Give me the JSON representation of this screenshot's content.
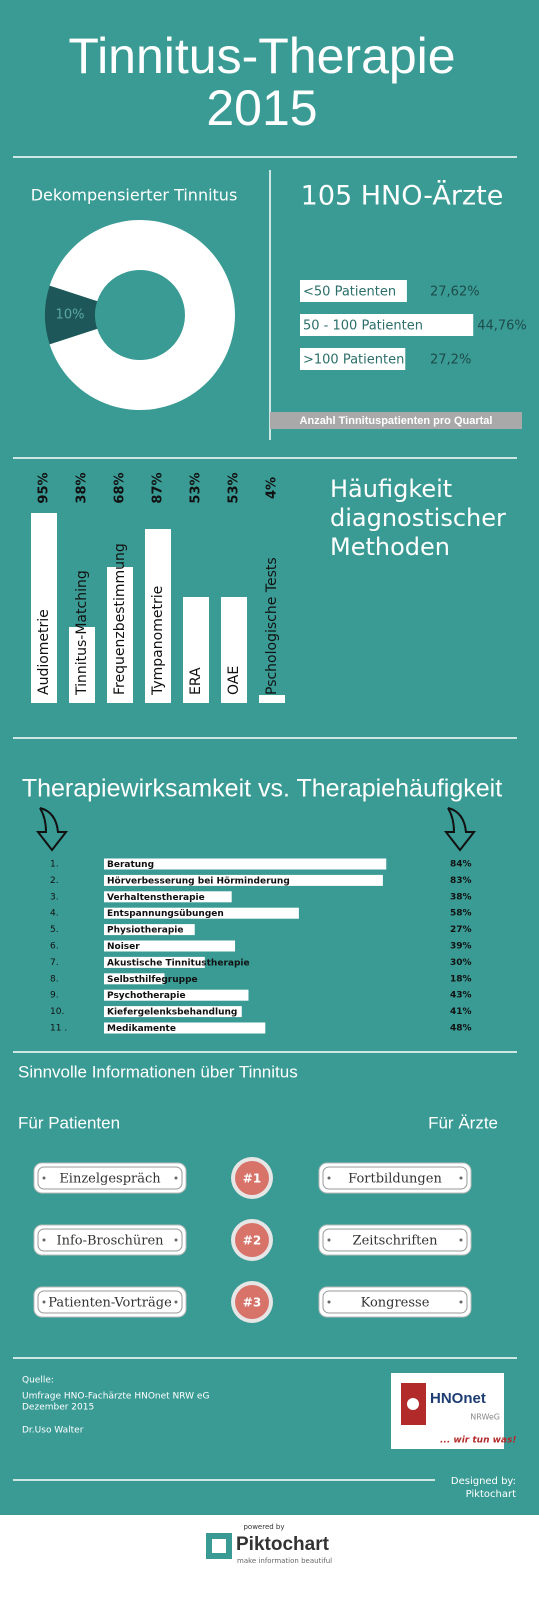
{
  "header": {
    "title_lines": [
      "Tinnitus-Therapie",
      "2015"
    ]
  },
  "chart_data": [
    {
      "type": "pie",
      "donut": true,
      "title": "Dekompensierter Tinnitus",
      "categories": [
        null,
        null
      ],
      "values": [
        10,
        90
      ],
      "value_labels": [
        "10%",
        null
      ],
      "colors": [
        "#1e5759",
        "#ffffff"
      ]
    },
    {
      "type": "bar",
      "orientation": "horizontal",
      "title": "105 HNO-Ärzte",
      "categories": [
        "<50 Patienten",
        "50 - 100 Patienten",
        ">100 Patienten"
      ],
      "values": [
        27.62,
        44.76,
        27.2
      ],
      "value_labels": [
        "27,62%",
        "44,76%",
        "27,2%"
      ],
      "color": "#ffffff",
      "caption": "Anzahl Tinnituspatienten pro Quartal"
    },
    {
      "type": "bar",
      "orientation": "vertical",
      "title_lines": [
        "Häufigkeit",
        "diagnostischer",
        "Methoden"
      ],
      "categories": [
        "Audiometrie",
        "Tinnitus-Matching",
        "Frequenzbestimmung",
        "Tympanometrie",
        "ERA",
        "OAE",
        "Pschologische Tests"
      ],
      "values": [
        95,
        38,
        68,
        87,
        53,
        53,
        4
      ],
      "value_labels": [
        "95%",
        "38%",
        "68%",
        "87%",
        "53%",
        "53%",
        "4%"
      ],
      "color": "#ffffff",
      "ylim": [
        0,
        100
      ]
    },
    {
      "type": "bar",
      "orientation": "horizontal",
      "title": "Therapiewirksamkeit vs. Therapiehäufigkeit",
      "ranks": [
        "1.",
        "2.",
        "3.",
        "4.",
        "5.",
        "6.",
        "7.",
        "8.",
        "9.",
        "10.",
        "11 ."
      ],
      "categories": [
        "Beratung",
        "Hörverbesserung bei Hörminderung",
        "Verhaltenstherapie",
        "Entspannungsübungen",
        "Physiotherapie",
        "Noiser",
        "Akustische Tinnitustherapie",
        "Selbsthilfegruppe",
        "Psychotherapie",
        "Kiefergelenksbehandlung",
        "Medikamente"
      ],
      "values": [
        84,
        83,
        38,
        58,
        27,
        39,
        30,
        18,
        43,
        41,
        48
      ],
      "value_labels": [
        "84%",
        "83%",
        "38%",
        "58%",
        "27%",
        "39%",
        "30%",
        "18%",
        "43%",
        "41%",
        "48%"
      ],
      "color": "#ffffff",
      "xlim": [
        0,
        100
      ]
    }
  ],
  "info": {
    "title": "Sinnvolle Informationen über Tinnitus",
    "patients": {
      "heading": "Für Patienten",
      "items": [
        "Einzelgespräch",
        "Info-Broschüren",
        "Patienten-Vorträge"
      ]
    },
    "doctors": {
      "heading": "Für Ärzte",
      "items": [
        "Fortbildungen",
        "Zeitschriften",
        "Kongresse"
      ]
    },
    "ranks": [
      "#1",
      "#2",
      "#3"
    ]
  },
  "footer": {
    "source_label": "Quelle:",
    "source_lines": [
      "Umfrage HNO-Fachärzte HNOnet NRW eG",
      "Dezember 2015"
    ],
    "author": "Dr.Uso Walter",
    "logo": {
      "name": "HNOnet",
      "region": "NRWeG",
      "slogan": "... wir tun was!"
    },
    "designed_by": "Designed by:",
    "designer": "Piktochart",
    "powered_by": "powered by",
    "brand": "Piktochart",
    "brand_tagline": "make information beautiful"
  }
}
